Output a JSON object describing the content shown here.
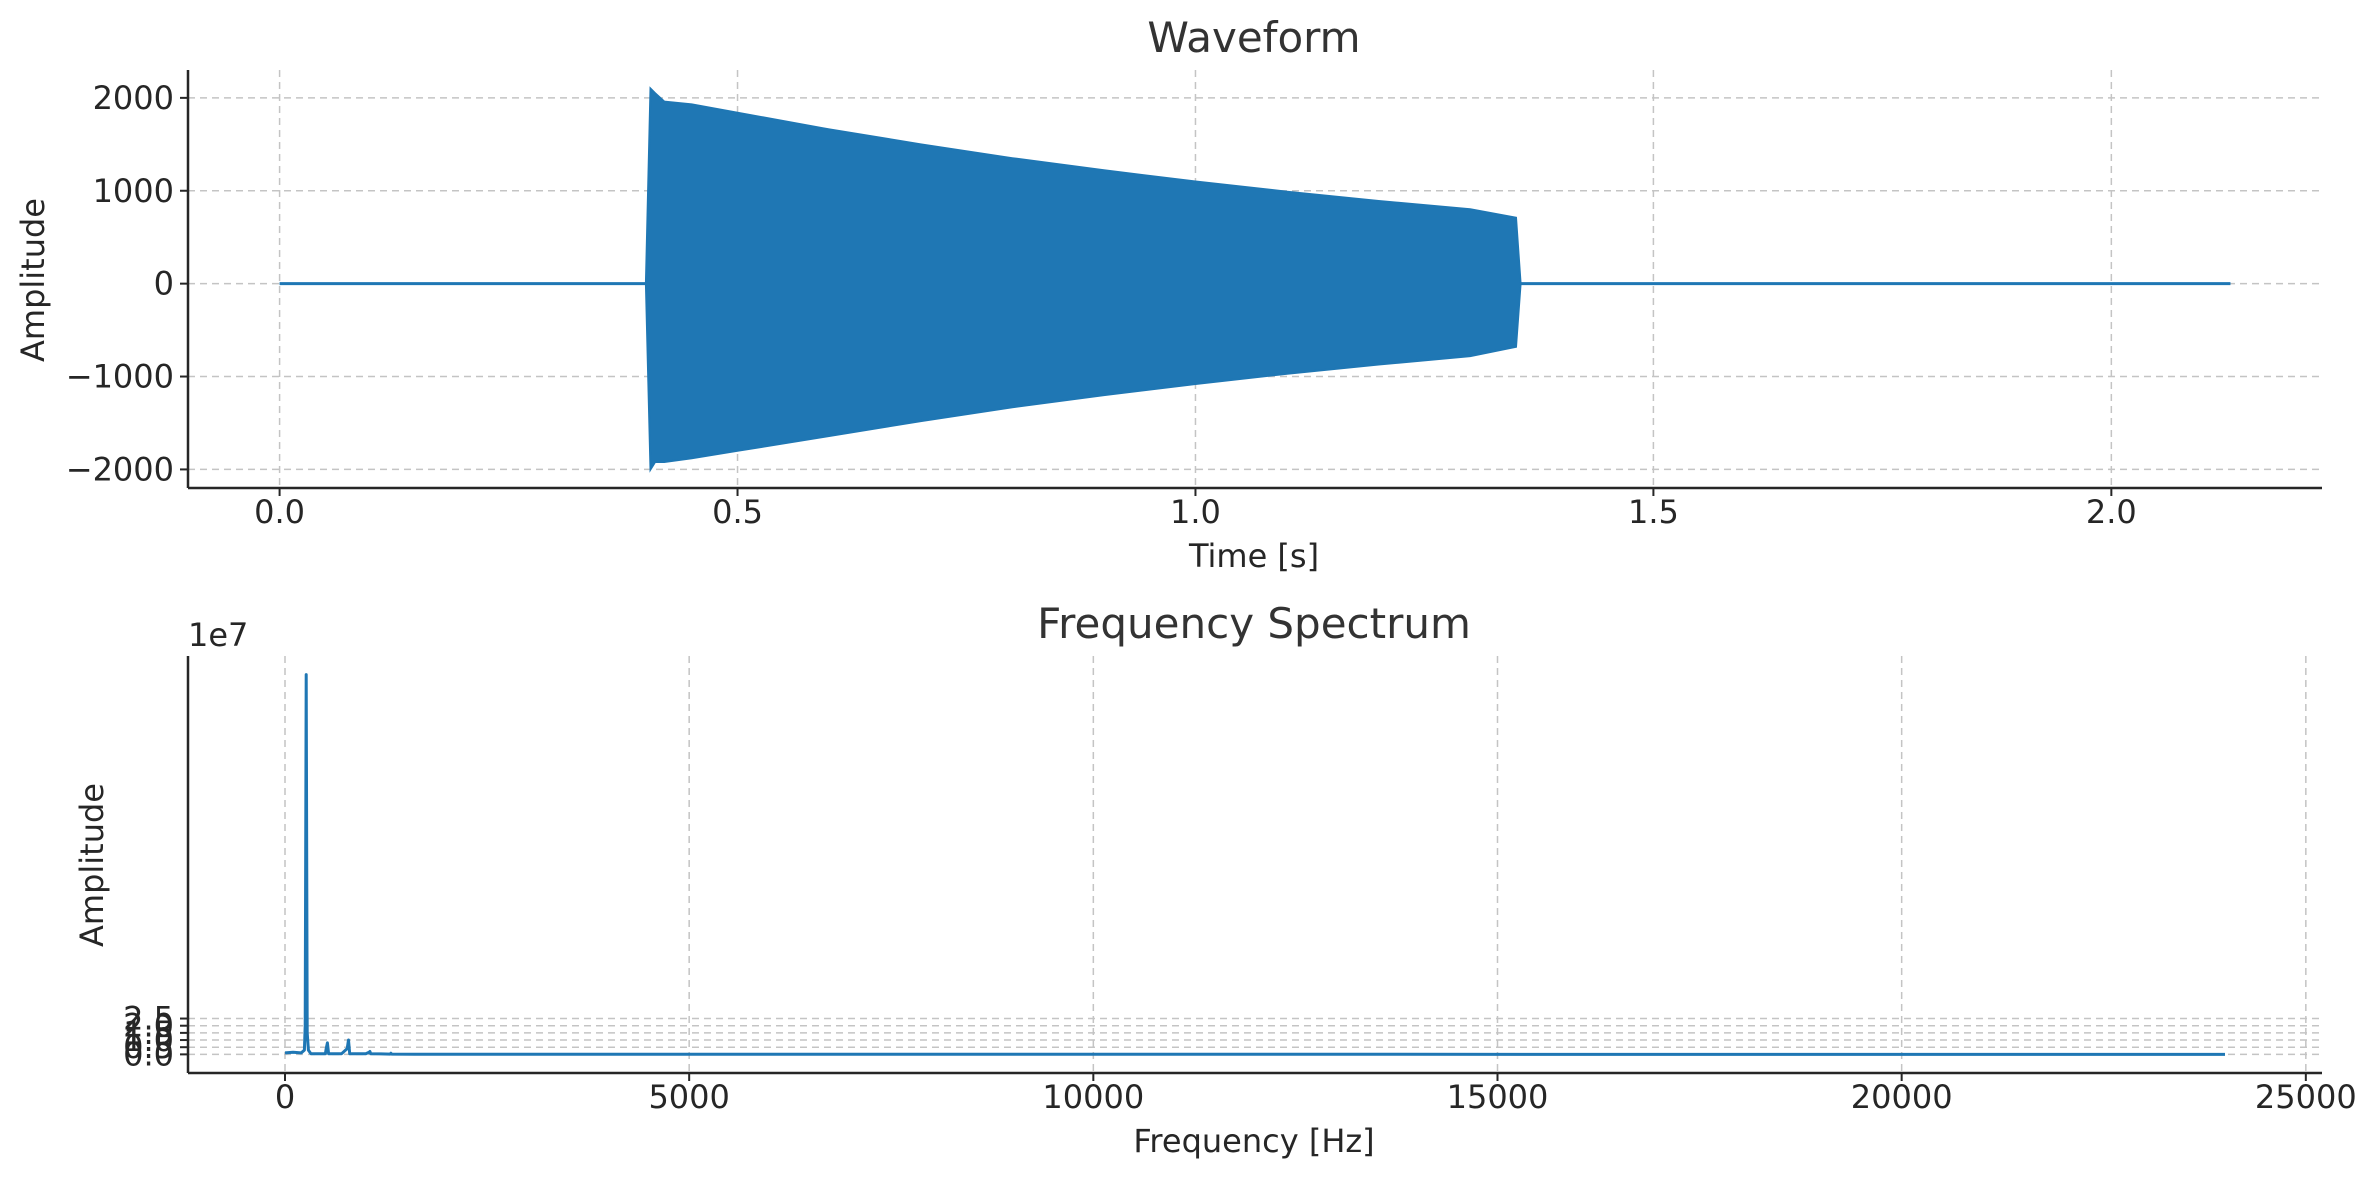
{
  "chart_data": [
    {
      "type": "area",
      "title": "Waveform",
      "xlabel": "Time [s]",
      "ylabel": "Amplitude",
      "xlim": [
        -0.1,
        2.23
      ],
      "ylim": [
        -2200,
        2300
      ],
      "xticks": [
        0.0,
        0.5,
        1.0,
        1.5,
        2.0
      ],
      "xtick_labels": [
        "0.0",
        "0.5",
        "1.0",
        "1.5",
        "2.0"
      ],
      "yticks": [
        2000,
        1000,
        0,
        -1000,
        -2000
      ],
      "ytick_labels": [
        "2000",
        "1000",
        "0",
        "−1000",
        "−2000"
      ],
      "grid": true,
      "series": [
        {
          "color": "#1f77b4",
          "x": [
            0.0,
            0.4,
            0.405,
            0.41,
            0.42,
            0.45,
            0.5,
            0.6,
            0.7,
            0.8,
            0.9,
            1.0,
            1.1,
            1.2,
            1.3,
            1.35,
            1.355,
            2.13
          ],
          "upper": [
            0,
            0,
            2100,
            2050,
            1960,
            1930,
            1840,
            1660,
            1500,
            1350,
            1220,
            1100,
            990,
            890,
            800,
            710,
            0,
            0
          ],
          "lower": [
            0,
            0,
            -2000,
            -1920,
            -1920,
            -1880,
            -1800,
            -1640,
            -1480,
            -1330,
            -1200,
            -1080,
            -970,
            -870,
            -780,
            -680,
            0,
            0
          ]
        }
      ]
    },
    {
      "type": "line",
      "title": "Frequency Spectrum",
      "xlabel": "Frequency [Hz]",
      "ylabel": "Amplitude",
      "y_offset_label": "1e7",
      "xlim": [
        -1200,
        25200
      ],
      "ylim": [
        -1.3,
        27.8
      ],
      "xticks": [
        0,
        5000,
        10000,
        15000,
        20000,
        25000
      ],
      "xtick_labels": [
        "0",
        "5000",
        "10000",
        "15000",
        "20000",
        "25000"
      ],
      "yticks": [
        0.0,
        0.5,
        1.0,
        1.5,
        2.0,
        2.5
      ],
      "ytick_labels": [
        "0.0",
        "0.5",
        "1.0",
        "1.5",
        "2.0",
        "2.5"
      ],
      "y_scale_factor": 10000000,
      "grid": true,
      "series": [
        {
          "color": "#1f77b4",
          "x": [
            0,
            100,
            200,
            240,
            250,
            262,
            275,
            290,
            320,
            500,
            510,
            525,
            540,
            700,
            770,
            785,
            800,
            1000,
            1040,
            1050,
            1060,
            1300,
            1310,
            1320,
            1600,
            24000
          ],
          "y": [
            0.1,
            0.15,
            0.1,
            0.3,
            2.0,
            26.5,
            1.5,
            0.3,
            0.05,
            0.05,
            0.4,
            0.8,
            0.05,
            0.05,
            0.4,
            1.0,
            0.05,
            0.05,
            0.15,
            0.2,
            0.05,
            0.02,
            0.08,
            0.02,
            0.01,
            0.0
          ]
        }
      ]
    }
  ]
}
